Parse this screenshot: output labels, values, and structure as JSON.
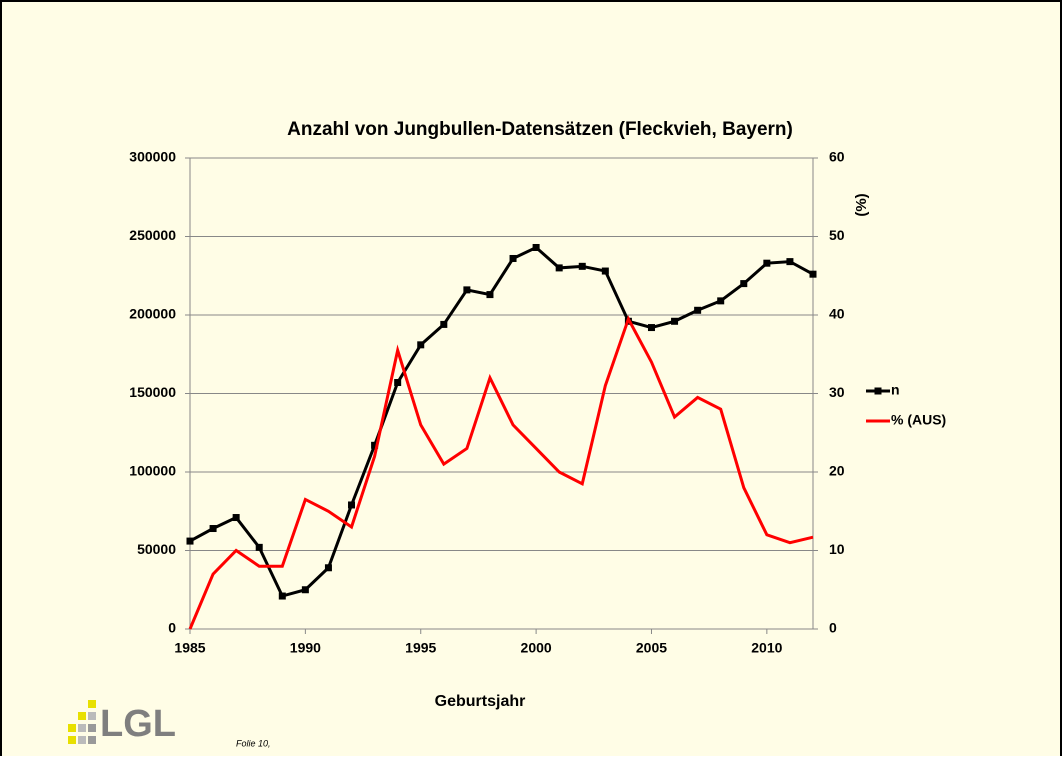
{
  "chart_data": {
    "type": "line",
    "title": "Anzahl von Jungbullen-Datensätzen (Fleckvieh, Bayern)",
    "x_label": "Geburtsjahr",
    "y2_label": "(%)",
    "x": [
      1985,
      1986,
      1987,
      1988,
      1989,
      1990,
      1991,
      1992,
      1993,
      1994,
      1995,
      1996,
      1997,
      1998,
      1999,
      2000,
      2001,
      2002,
      2003,
      2004,
      2005,
      2006,
      2007,
      2008,
      2009,
      2010,
      2011,
      2012
    ],
    "series": [
      {
        "name": "n",
        "color": "#000000",
        "marker": "square",
        "axis": "y",
        "values": [
          56000,
          64000,
          71000,
          52000,
          21000,
          25000,
          39000,
          79000,
          117000,
          157000,
          181000,
          194000,
          216000,
          213000,
          236000,
          243000,
          230000,
          231000,
          228000,
          196000,
          192000,
          196000,
          203000,
          209000,
          220000,
          233000,
          234000,
          226000
        ]
      },
      {
        "name": "% (AUS)",
        "color": "#ff0000",
        "axis": "y2",
        "values": [
          0,
          7,
          10,
          8,
          8,
          16.5,
          15,
          13,
          22,
          35.5,
          26,
          21,
          23,
          32,
          26,
          23,
          20,
          18.5,
          31,
          39.5,
          34,
          27,
          29.5,
          28,
          18,
          12,
          11,
          11.7
        ]
      }
    ],
    "xlim": [
      1985,
      2012
    ],
    "xticks": [
      1985,
      1990,
      1995,
      2000,
      2005,
      2010
    ],
    "ylim": [
      0,
      300000
    ],
    "yticks": [
      0,
      50000,
      100000,
      150000,
      200000,
      250000,
      300000
    ],
    "y2lim": [
      0,
      60
    ],
    "y2ticks": [
      0,
      10,
      20,
      30,
      40,
      50,
      60
    ],
    "grid": true,
    "legend": "right"
  },
  "slide": {
    "logo": "LGL",
    "footer": "Folie 10,"
  }
}
